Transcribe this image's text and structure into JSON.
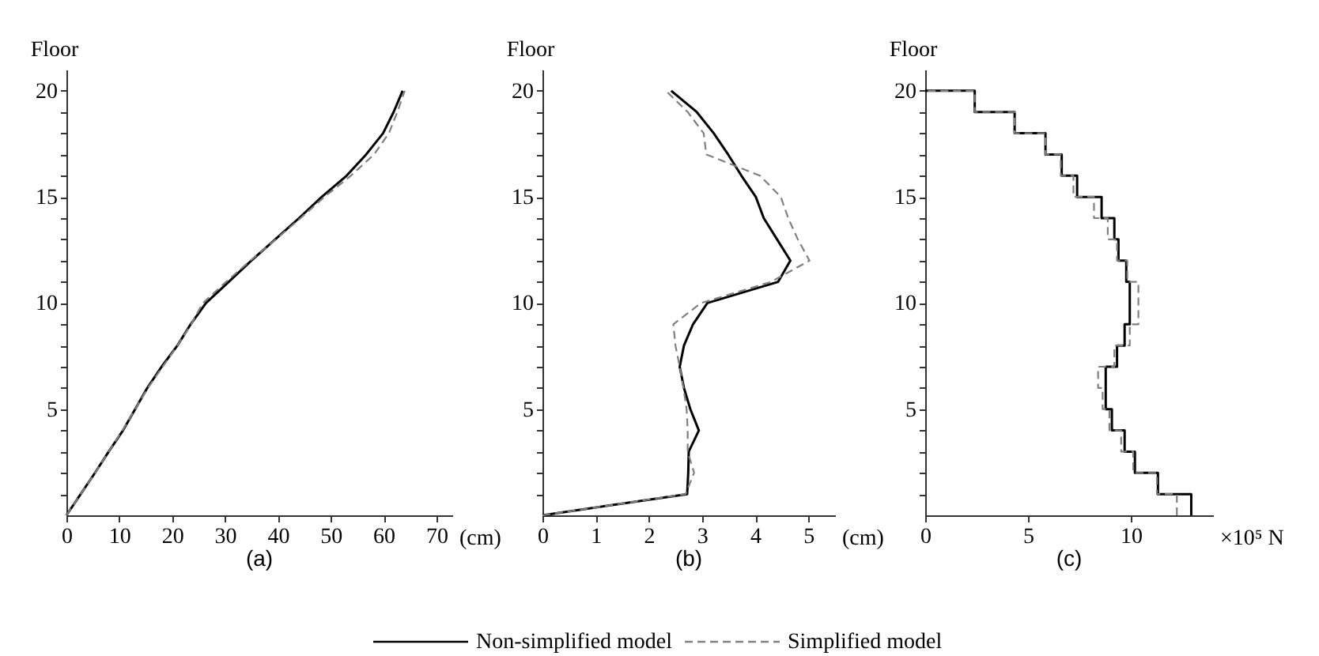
{
  "chart_data": [
    {
      "type": "line",
      "title": "(a)",
      "xlabel": "(cm)",
      "ylabel": "Floor",
      "xlim": [
        0,
        73
      ],
      "xticks": [
        0,
        10,
        20,
        30,
        40,
        50,
        60,
        70
      ],
      "ylim": [
        0,
        21
      ],
      "yticks": [
        {
          "value": 1,
          "label": null
        },
        {
          "value": 2,
          "label": null
        },
        {
          "value": 3,
          "label": null
        },
        {
          "value": 4,
          "label": null
        },
        5,
        {
          "value": 6,
          "label": null
        },
        {
          "value": 7,
          "label": null
        },
        {
          "value": 8,
          "label": null
        },
        {
          "value": 9,
          "label": null
        },
        10,
        {
          "value": 11,
          "label": null
        },
        {
          "value": 12,
          "label": null
        },
        {
          "value": 13,
          "label": null
        },
        {
          "value": 14,
          "label": null
        },
        15,
        {
          "value": 16,
          "label": null
        },
        {
          "value": 17,
          "label": null
        },
        {
          "value": 18,
          "label": null
        },
        {
          "value": 19,
          "label": null
        },
        20
      ],
      "legend": "bottom",
      "series": [
        {
          "name": "Non-simplified model",
          "color": "#000000",
          "line_style": "solid",
          "x": [
            0,
            2.7,
            5.4,
            8,
            10.7,
            13,
            15.3,
            18,
            21,
            23.5,
            26.4,
            30.7,
            35,
            39.5,
            44,
            48.3,
            53,
            56.7,
            59.9,
            61.9,
            63.6
          ],
          "values": [
            0,
            1,
            2,
            3,
            4,
            5,
            6,
            7,
            8,
            9,
            10,
            11,
            12,
            13,
            14,
            15,
            16,
            17,
            18,
            19,
            20
          ]
        },
        {
          "name": "Simplified model",
          "color": "#808080",
          "line_style": "dashed",
          "x": [
            0,
            2.7,
            5.4,
            8,
            10.6,
            13,
            15.4,
            18.2,
            21,
            23.6,
            25.8,
            30.2,
            34.8,
            39.6,
            44.3,
            48.8,
            53.8,
            58.2,
            61,
            62.6,
            64
          ],
          "values": [
            0,
            1,
            2,
            3,
            4,
            5,
            6,
            7,
            8,
            9,
            10,
            11,
            12,
            13,
            14,
            15,
            16,
            17,
            18,
            19,
            20
          ]
        }
      ]
    },
    {
      "type": "line",
      "title": "(b)",
      "xlabel": "(cm)",
      "ylabel": "Floor",
      "xlim": [
        0,
        5.5
      ],
      "xticks": [
        0,
        1,
        2,
        3,
        4,
        5
      ],
      "ylim": [
        0,
        21
      ],
      "yticks": [
        {
          "value": 1,
          "label": null
        },
        {
          "value": 2,
          "label": null
        },
        {
          "value": 3,
          "label": null
        },
        {
          "value": 4,
          "label": null
        },
        5,
        {
          "value": 6,
          "label": null
        },
        {
          "value": 7,
          "label": null
        },
        {
          "value": 8,
          "label": null
        },
        {
          "value": 9,
          "label": null
        },
        10,
        {
          "value": 11,
          "label": null
        },
        {
          "value": 12,
          "label": null
        },
        {
          "value": 13,
          "label": null
        },
        {
          "value": 14,
          "label": null
        },
        15,
        {
          "value": 16,
          "label": null
        },
        {
          "value": 17,
          "label": null
        },
        {
          "value": 18,
          "label": null
        },
        {
          "value": 19,
          "label": null
        },
        20
      ],
      "legend": "bottom",
      "series": [
        {
          "name": "Non-simplified model",
          "color": "#000000",
          "line_style": "solid",
          "x": [
            0,
            2.72,
            2.74,
            2.75,
            2.94,
            2.78,
            2.66,
            2.58,
            2.66,
            2.83,
            3.1,
            4.43,
            4.66,
            4.41,
            4.16,
            4.01,
            3.74,
            3.49,
            3.22,
            2.9,
            2.42
          ],
          "values": [
            0,
            1,
            2,
            3,
            4,
            5,
            6,
            7,
            8,
            9,
            10,
            11,
            12,
            13,
            14,
            15,
            16,
            17,
            18,
            19,
            20
          ]
        },
        {
          "name": "Simplified model",
          "color": "#808080",
          "line_style": "dashed",
          "x": [
            0,
            2.69,
            2.85,
            2.73,
            2.73,
            2.71,
            2.65,
            2.58,
            2.5,
            2.46,
            2.98,
            4.3,
            5.02,
            4.8,
            4.62,
            4.48,
            4.09,
            3.08,
            3.03,
            2.73,
            2.32
          ],
          "values": [
            0,
            1,
            2,
            3,
            4,
            5,
            6,
            7,
            8,
            9,
            10,
            11,
            12,
            13,
            14,
            15,
            16,
            17,
            18,
            19,
            20
          ]
        }
      ]
    },
    {
      "type": "step",
      "title": "(c)",
      "xlabel": "×10⁵ N",
      "ylabel": "Floor",
      "xlim": [
        0,
        14
      ],
      "xticks": [
        0,
        5,
        10
      ],
      "ylim": [
        0,
        21
      ],
      "yticks": [
        {
          "value": 1,
          "label": null
        },
        {
          "value": 2,
          "label": null
        },
        {
          "value": 3,
          "label": null
        },
        {
          "value": 4,
          "label": null
        },
        5,
        {
          "value": 6,
          "label": null
        },
        {
          "value": 7,
          "label": null
        },
        {
          "value": 8,
          "label": null
        },
        {
          "value": 9,
          "label": null
        },
        10,
        {
          "value": 11,
          "label": null
        },
        {
          "value": 12,
          "label": null
        },
        {
          "value": 13,
          "label": null
        },
        {
          "value": 14,
          "label": null
        },
        15,
        {
          "value": 16,
          "label": null
        },
        {
          "value": 17,
          "label": null
        },
        {
          "value": 18,
          "label": null
        },
        {
          "value": 19,
          "label": null
        },
        20
      ],
      "legend": "bottom",
      "series": [
        {
          "name": "Non-simplified model",
          "color": "#000000",
          "line_style": "solid",
          "x": [
            12.94,
            11.32,
            10.2,
            9.7,
            9.08,
            8.78,
            8.78,
            9.33,
            9.7,
            9.95,
            9.95,
            9.78,
            9.4,
            9.2,
            8.58,
            7.39,
            6.64,
            5.85,
            4.35,
            2.41,
            0
          ],
          "values": [
            0,
            1,
            2,
            3,
            4,
            5,
            6,
            7,
            8,
            9,
            10,
            11,
            12,
            13,
            14,
            15,
            16,
            17,
            18,
            19,
            20
          ]
        },
        {
          "name": "Simplified model",
          "color": "#808080",
          "line_style": "dashed",
          "x": [
            12.24,
            11.27,
            10.12,
            9.53,
            8.96,
            8.63,
            8.41,
            9.2,
            9.95,
            10.37,
            10.37,
            9.83,
            9.33,
            8.88,
            8.21,
            7.21,
            6.59,
            5.85,
            4.35,
            2.41,
            0
          ],
          "values": [
            0,
            1,
            2,
            3,
            4,
            5,
            6,
            7,
            8,
            9,
            10,
            11,
            12,
            13,
            14,
            15,
            16,
            17,
            18,
            19,
            20
          ]
        }
      ]
    }
  ]
}
